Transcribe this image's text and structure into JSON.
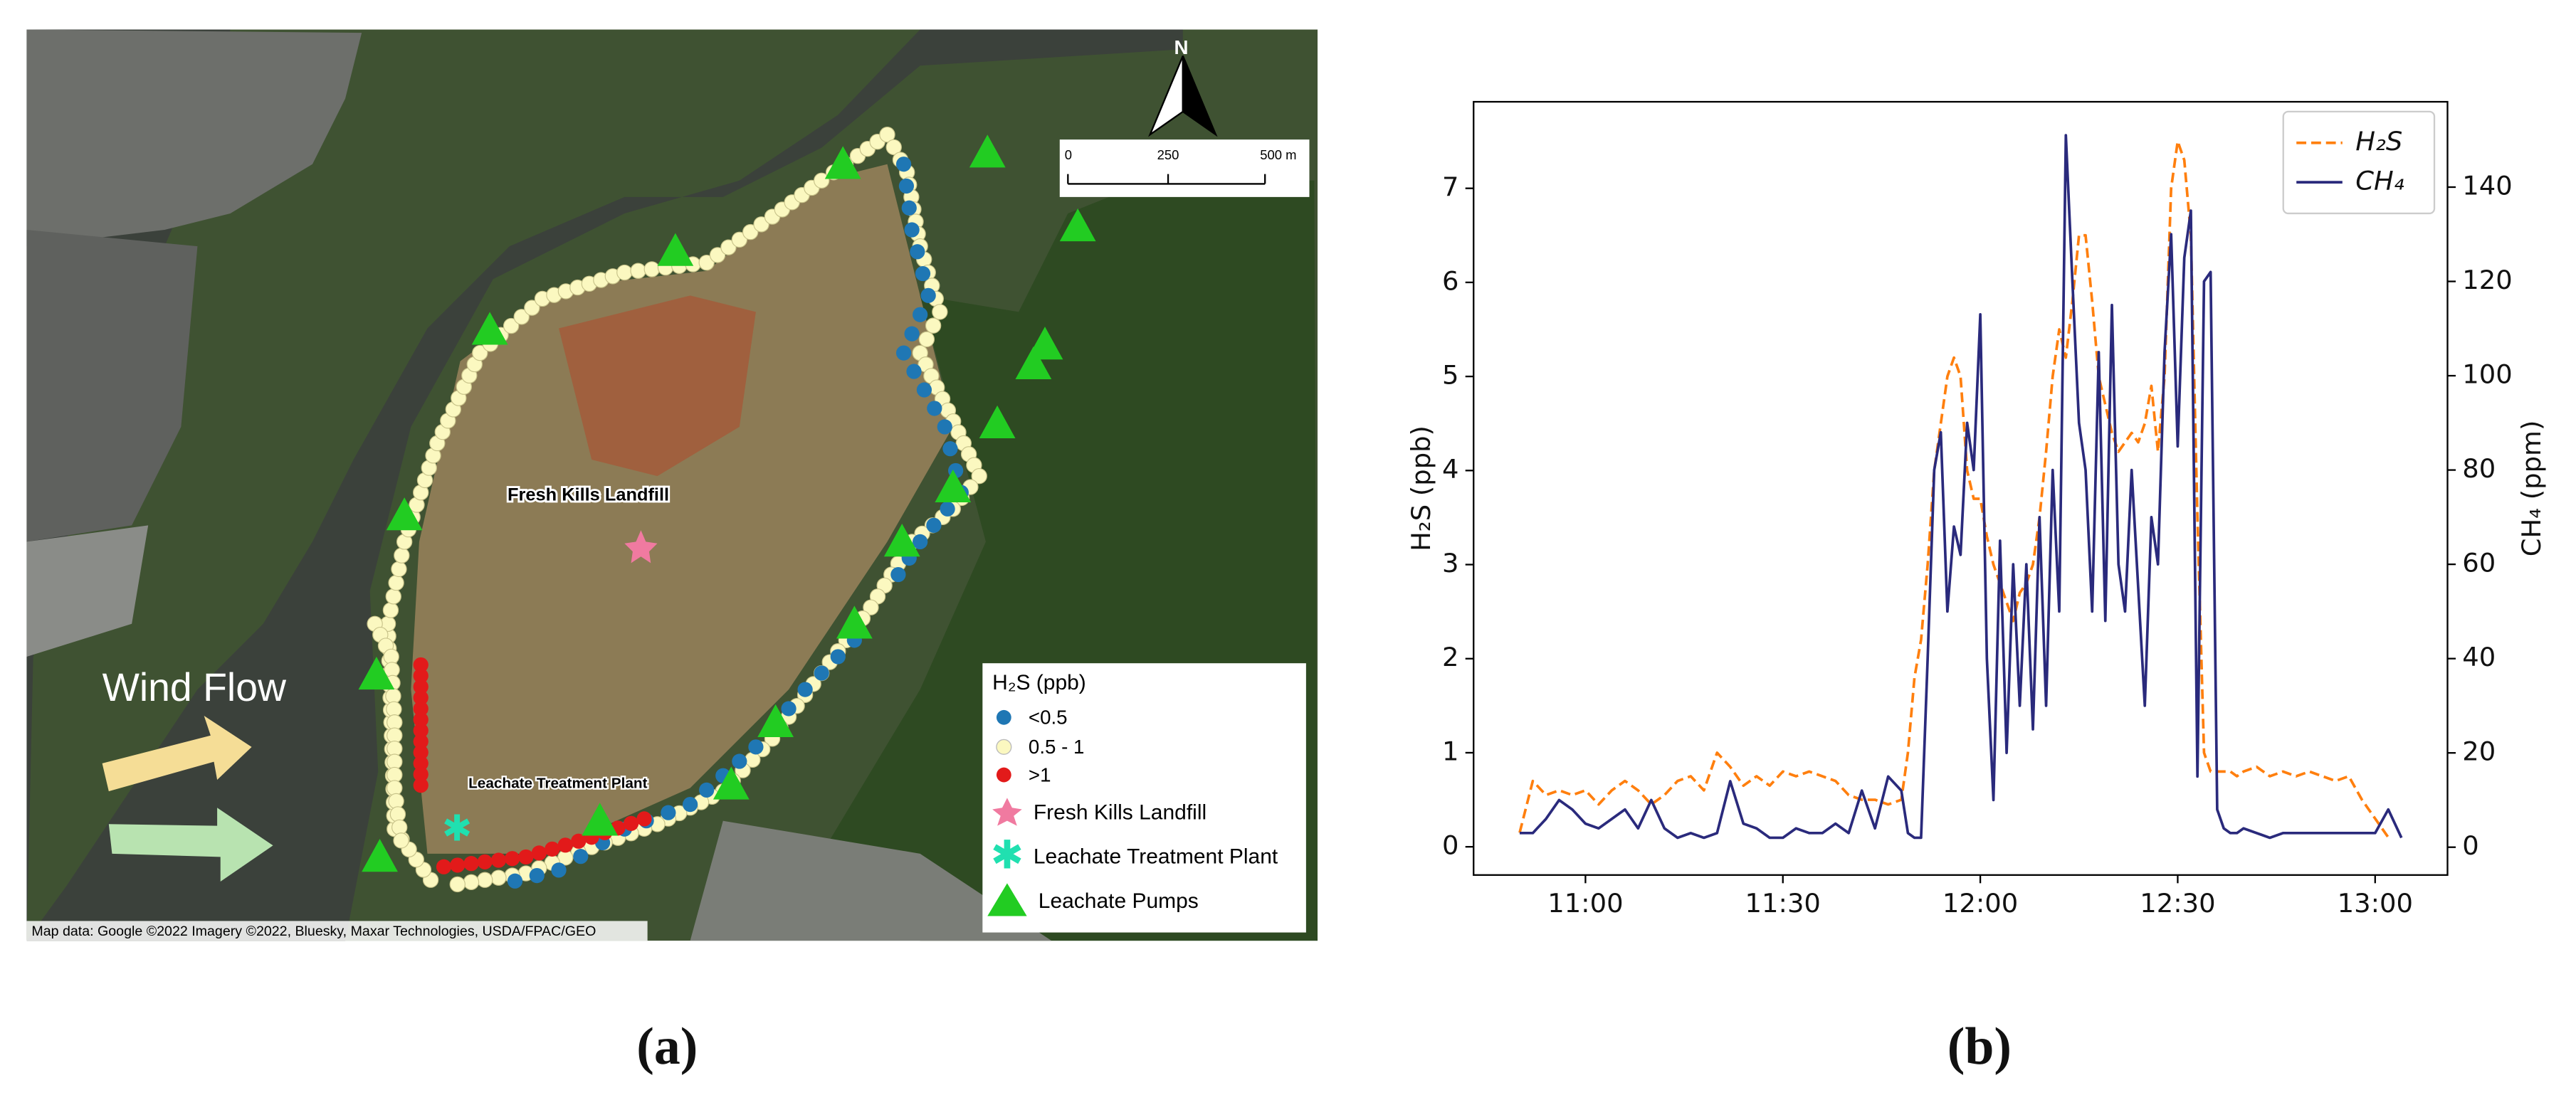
{
  "map": {
    "north": "N",
    "scale": [
      "0",
      "250",
      "500 m"
    ],
    "landfill_label": "Fresh Kills Landfill",
    "plant_label": "Leachate Treatment Plant",
    "wind_label": "Wind Flow",
    "legend_title": "H₂S (ppb)",
    "legend": [
      "<0.5",
      "0.5 - 1",
      ">1",
      "Fresh Kills Landfill",
      "Leachate Treatment Plant",
      "Leachate Pumps"
    ],
    "credit": "Map data: Google ©2022 Imagery ©2022, Bluesky, Maxar Technologies, USDA/FPAC/GEO",
    "caption": "(a)"
  },
  "chart_data": {
    "type": "line",
    "caption": "(b)",
    "y_label": "H₂S (ppb)",
    "y2_label": "CH₄ (ppm)",
    "x": [
      "10:50",
      "10:52",
      "10:54",
      "10:56",
      "10:58",
      "11:00",
      "11:02",
      "11:04",
      "11:06",
      "11:08",
      "11:10",
      "11:12",
      "11:14",
      "11:16",
      "11:18",
      "11:20",
      "11:22",
      "11:24",
      "11:26",
      "11:28",
      "11:30",
      "11:32",
      "11:34",
      "11:36",
      "11:38",
      "11:40",
      "11:42",
      "11:44",
      "11:46",
      "11:48",
      "11:49",
      "11:50",
      "11:51",
      "11:52",
      "11:53",
      "11:54",
      "11:55",
      "11:56",
      "11:57",
      "11:58",
      "11:59",
      "12:00",
      "12:01",
      "12:02",
      "12:03",
      "12:04",
      "12:05",
      "12:06",
      "12:07",
      "12:08",
      "12:09",
      "12:10",
      "12:11",
      "12:12",
      "12:13",
      "12:14",
      "12:15",
      "12:16",
      "12:17",
      "12:18",
      "12:19",
      "12:20",
      "12:21",
      "12:22",
      "12:23",
      "12:24",
      "12:25",
      "12:26",
      "12:27",
      "12:28",
      "12:29",
      "12:30",
      "12:31",
      "12:32",
      "12:33",
      "12:34",
      "12:35",
      "12:36",
      "12:37",
      "12:38",
      "12:39",
      "12:40",
      "12:42",
      "12:44",
      "12:46",
      "12:48",
      "12:50",
      "12:52",
      "12:54",
      "12:56",
      "12:58",
      "13:00",
      "13:02",
      "13:04"
    ],
    "series": [
      {
        "name": "H₂S",
        "color": "#ff7f0e",
        "dashed": true,
        "values": [
          0.15,
          0.7,
          0.55,
          0.6,
          0.55,
          0.6,
          0.45,
          0.6,
          0.7,
          0.6,
          0.45,
          0.55,
          0.7,
          0.75,
          0.6,
          1.0,
          0.85,
          0.65,
          0.75,
          0.65,
          0.8,
          0.75,
          0.8,
          0.75,
          0.7,
          0.55,
          0.5,
          0.5,
          0.45,
          0.5,
          1.0,
          1.8,
          2.2,
          3.0,
          4.0,
          4.5,
          5.0,
          5.2,
          5.0,
          4.0,
          3.7,
          3.7,
          3.3,
          3.0,
          2.8,
          2.6,
          2.4,
          2.7,
          2.8,
          3.0,
          3.5,
          4.2,
          5.0,
          5.5,
          5.2,
          5.8,
          6.5,
          6.5,
          5.8,
          5.0,
          4.7,
          4.4,
          4.2,
          4.3,
          4.4,
          4.3,
          4.5,
          4.9,
          4.2,
          5.0,
          7.0,
          7.5,
          7.3,
          6.5,
          3.5,
          1.0,
          0.8,
          0.8,
          0.8,
          0.8,
          0.75,
          0.8,
          0.85,
          0.75,
          0.8,
          0.75,
          0.8,
          0.75,
          0.7,
          0.75,
          0.5,
          0.3,
          0.1,
          null
        ]
      },
      {
        "name": "CH₄",
        "color": "#2a2a7c",
        "axis": "y2",
        "values": [
          3,
          3,
          6,
          10,
          8,
          5,
          4,
          6,
          8,
          4,
          10,
          4,
          2,
          3,
          2,
          3,
          14,
          5,
          4,
          2,
          2,
          4,
          3,
          3,
          5,
          3,
          12,
          4,
          15,
          12,
          3,
          2,
          2,
          40,
          80,
          88,
          50,
          68,
          62,
          90,
          80,
          113,
          40,
          10,
          65,
          20,
          60,
          30,
          60,
          25,
          70,
          30,
          80,
          50,
          151,
          120,
          90,
          80,
          50,
          105,
          48,
          115,
          60,
          50,
          80,
          55,
          30,
          70,
          60,
          105,
          130,
          85,
          125,
          135,
          15,
          120,
          122,
          8,
          4,
          3,
          3,
          4,
          3,
          2,
          3,
          3,
          3,
          3,
          3,
          3,
          3,
          3,
          8,
          2
        ]
      }
    ],
    "xlim": [
      "10:43",
      "13:11"
    ],
    "xticks": [
      "11:00",
      "11:30",
      "12:00",
      "12:30",
      "13:00"
    ],
    "ylim": [
      -0.3,
      7.92
    ],
    "yticks": [
      0,
      1,
      2,
      3,
      4,
      5,
      6,
      7
    ],
    "y2lim": [
      -5.9,
      158.1
    ],
    "y2ticks": [
      0,
      20,
      40,
      60,
      80,
      100,
      120,
      140
    ],
    "legend_position": "upper right",
    "grid": false
  }
}
